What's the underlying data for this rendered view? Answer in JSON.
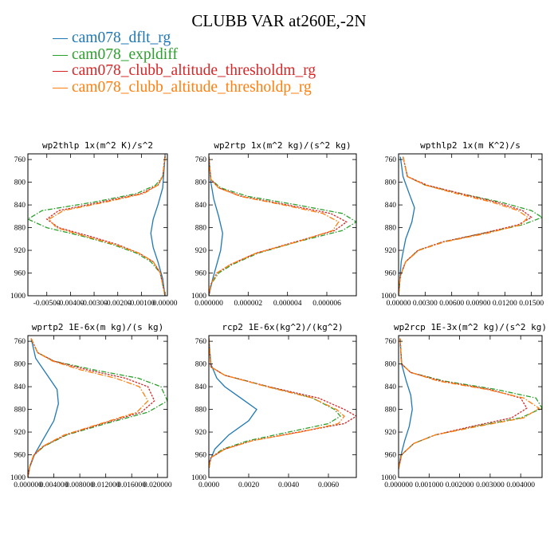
{
  "figure": {
    "title": "CLUBB VAR at260E,-2N"
  },
  "legend": [
    {
      "label": "cam078_dflt_rg",
      "color": "#1f77b4"
    },
    {
      "label": "cam078_expldiff",
      "color": "#2ca02c"
    },
    {
      "label": "cam078_clubb_altitude_thresholdm_rg",
      "color": "#d62728"
    },
    {
      "label": "cam078_clubb_altitude_thresholdp_rg",
      "color": "#ff7f0e"
    }
  ],
  "chart_data": [
    {
      "type": "line",
      "title": "wp2thlp  1x(m^2 K)/s^2",
      "xlim": [
        -0.0058,
        0.0001
      ],
      "ylim": [
        1000,
        750
      ],
      "x_ticks": [
        -0.005,
        -0.004,
        -0.003,
        -0.002,
        -0.001,
        0
      ],
      "x_tick_labels": [
        "-0.00500",
        "-0.00400",
        "-0.00300",
        "-0.00200",
        "-0.00100",
        "0.00000"
      ],
      "y_ticks": [
        760,
        800,
        840,
        880,
        920,
        960,
        1000
      ],
      "y_tick_labels": [
        "760",
        "800",
        "840",
        "880",
        "920",
        "960",
        "1000"
      ],
      "series": [
        {
          "name": "cam078_dflt_rg",
          "x": [
            0.0,
            -0.0001,
            -0.0003,
            -0.0005,
            -0.0006,
            -0.0005,
            -0.0003,
            -0.0001,
            0.0
          ],
          "y": [
            755,
            810,
            840,
            865,
            890,
            915,
            940,
            970,
            1000
          ]
        },
        {
          "name": "cam078_expldiff",
          "x": [
            0.0,
            -0.0001,
            -0.0004,
            -0.0012,
            -0.003,
            -0.0052,
            -0.0058,
            -0.005,
            -0.0035,
            -0.0022,
            -0.0012,
            -0.0006,
            -0.0002,
            0.0
          ],
          "y": [
            755,
            790,
            805,
            820,
            835,
            850,
            865,
            880,
            895,
            910,
            925,
            940,
            960,
            1000
          ]
        },
        {
          "name": "cam078_clubb_altitude_thresholdm_rg",
          "x": [
            0.0,
            -0.0001,
            -0.0003,
            -0.001,
            -0.0027,
            -0.0045,
            -0.005,
            -0.0045,
            -0.0032,
            -0.002,
            -0.0011,
            -0.0005,
            -0.0002,
            0.0
          ],
          "y": [
            755,
            790,
            805,
            820,
            835,
            850,
            865,
            880,
            895,
            910,
            925,
            940,
            960,
            1000
          ]
        },
        {
          "name": "cam078_clubb_altitude_thresholdp_rg",
          "x": [
            0.0,
            -0.0001,
            -0.0003,
            -0.0009,
            -0.0025,
            -0.0043,
            -0.0049,
            -0.0046,
            -0.0034,
            -0.0021,
            -0.0011,
            -0.0005,
            -0.0002,
            0.0
          ],
          "y": [
            755,
            790,
            805,
            820,
            835,
            850,
            865,
            880,
            895,
            910,
            925,
            940,
            960,
            1000
          ]
        }
      ]
    },
    {
      "type": "line",
      "title": "wp2rtp  1x(m^2 kg)/(s^2 kg)",
      "xlim": [
        0,
        7.5e-06
      ],
      "ylim": [
        1000,
        750
      ],
      "x_ticks": [
        0,
        2e-06,
        4e-06,
        6e-06
      ],
      "x_tick_labels": [
        "0.000000",
        "0.000002",
        "0.000004",
        "0.000006"
      ],
      "y_ticks": [
        760,
        800,
        840,
        880,
        920,
        960,
        1000
      ],
      "y_tick_labels": [
        "760",
        "800",
        "840",
        "880",
        "920",
        "960",
        "1000"
      ],
      "series": [
        {
          "name": "cam078_dflt_rg",
          "x": [
            0.0,
            1e-07,
            2.5e-07,
            5e-07,
            7e-07,
            6e-07,
            4e-07,
            2e-07,
            0.0
          ],
          "y": [
            755,
            800,
            830,
            860,
            890,
            920,
            945,
            970,
            1000
          ]
        },
        {
          "name": "cam078_expldiff",
          "x": [
            0.0,
            1e-07,
            6e-07,
            2e-06,
            4.5e-06,
            6.8e-06,
            7.5e-06,
            6.8e-06,
            4.5e-06,
            2.5e-06,
            1.2e-06,
            5e-07,
            1e-07,
            0.0
          ],
          "y": [
            755,
            795,
            810,
            825,
            840,
            855,
            870,
            885,
            905,
            925,
            945,
            960,
            980,
            1000
          ]
        },
        {
          "name": "cam078_clubb_altitude_thresholdm_rg",
          "x": [
            0.0,
            1e-07,
            5e-07,
            1.7e-06,
            4e-06,
            6.2e-06,
            7e-06,
            6.4e-06,
            4.4e-06,
            2.4e-06,
            1.1e-06,
            4e-07,
            1e-07,
            0.0
          ],
          "y": [
            755,
            795,
            810,
            825,
            840,
            855,
            870,
            885,
            905,
            925,
            945,
            960,
            980,
            1000
          ]
        },
        {
          "name": "cam078_clubb_altitude_thresholdp_rg",
          "x": [
            0.0,
            1e-07,
            5e-07,
            1.6e-06,
            3.8e-06,
            5.8e-06,
            6.6e-06,
            6.3e-06,
            4.5e-06,
            2.4e-06,
            1.1e-06,
            4e-07,
            1e-07,
            0.0
          ],
          "y": [
            755,
            795,
            810,
            825,
            840,
            855,
            870,
            885,
            905,
            925,
            945,
            960,
            980,
            1000
          ]
        }
      ]
    },
    {
      "type": "line",
      "title": "wpthlp2  1x(m K^2)/s",
      "xlim": [
        0,
        0.0162
      ],
      "ylim": [
        1000,
        750
      ],
      "x_ticks": [
        0,
        0.003,
        0.006,
        0.009,
        0.012,
        0.015
      ],
      "x_tick_labels": [
        "0.00000",
        "0.00300",
        "0.00600",
        "0.00900",
        "0.01200",
        "0.01500"
      ],
      "y_ticks": [
        760,
        800,
        840,
        880,
        920,
        960,
        1000
      ],
      "y_tick_labels": [
        "760",
        "800",
        "840",
        "880",
        "920",
        "960",
        "1000"
      ],
      "series": [
        {
          "name": "cam078_dflt_rg",
          "x": [
            0.0002,
            0.0005,
            0.0012,
            0.0018,
            0.0015,
            0.0008,
            0.0003,
            0.0
          ],
          "y": [
            755,
            790,
            820,
            845,
            870,
            900,
            940,
            1000
          ]
        },
        {
          "name": "cam078_expldiff",
          "x": [
            0.0005,
            0.001,
            0.003,
            0.007,
            0.0115,
            0.015,
            0.0162,
            0.014,
            0.0095,
            0.005,
            0.0022,
            0.0008,
            0.0002,
            0.0
          ],
          "y": [
            755,
            790,
            805,
            820,
            835,
            850,
            862,
            875,
            890,
            905,
            920,
            940,
            965,
            1000
          ]
        },
        {
          "name": "cam078_clubb_altitude_thresholdm_rg",
          "x": [
            0.0005,
            0.001,
            0.0032,
            0.007,
            0.011,
            0.014,
            0.015,
            0.0135,
            0.0095,
            0.005,
            0.0022,
            0.0008,
            0.0002,
            0.0
          ],
          "y": [
            755,
            790,
            805,
            820,
            835,
            850,
            862,
            875,
            890,
            905,
            920,
            940,
            965,
            1000
          ]
        },
        {
          "name": "cam078_clubb_altitude_thresholdp_rg",
          "x": [
            0.0005,
            0.001,
            0.003,
            0.0065,
            0.0105,
            0.0135,
            0.0146,
            0.0138,
            0.01,
            0.0052,
            0.0023,
            0.0008,
            0.0002,
            0.0
          ],
          "y": [
            755,
            790,
            805,
            820,
            835,
            850,
            862,
            875,
            890,
            905,
            920,
            940,
            965,
            1000
          ]
        }
      ]
    },
    {
      "type": "line",
      "title": "wprtp2  1E-6x(m kg)/(s kg)",
      "xlim": [
        0,
        0.0215
      ],
      "ylim": [
        1000,
        750
      ],
      "x_ticks": [
        0,
        0.004,
        0.008,
        0.012,
        0.016,
        0.02
      ],
      "x_tick_labels": [
        "0.000000",
        "0.004000",
        "0.008000",
        "0.012000",
        "0.016000",
        "0.020000"
      ],
      "y_ticks": [
        760,
        800,
        840,
        880,
        920,
        960,
        1000
      ],
      "y_tick_labels": [
        "760",
        "800",
        "840",
        "880",
        "920",
        "960",
        "1000"
      ],
      "series": [
        {
          "name": "cam078_dflt_rg",
          "x": [
            0.0005,
            0.0012,
            0.003,
            0.0045,
            0.0047,
            0.004,
            0.0025,
            0.001,
            0.0002,
            0.0
          ],
          "y": [
            755,
            790,
            820,
            845,
            870,
            900,
            930,
            960,
            985,
            1000
          ]
        },
        {
          "name": "cam078_expldiff",
          "x": [
            0.0005,
            0.0015,
            0.004,
            0.01,
            0.017,
            0.0205,
            0.0215,
            0.0185,
            0.012,
            0.006,
            0.0025,
            0.001,
            0.0003,
            0.0
          ],
          "y": [
            755,
            780,
            795,
            810,
            825,
            840,
            865,
            885,
            905,
            925,
            945,
            960,
            980,
            1000
          ]
        },
        {
          "name": "cam078_clubb_altitude_thresholdm_rg",
          "x": [
            0.0005,
            0.0015,
            0.004,
            0.009,
            0.015,
            0.0185,
            0.0195,
            0.0175,
            0.0115,
            0.0058,
            0.0024,
            0.001,
            0.0003,
            0.0
          ],
          "y": [
            755,
            780,
            795,
            810,
            825,
            840,
            865,
            885,
            905,
            925,
            945,
            960,
            980,
            1000
          ]
        },
        {
          "name": "cam078_clubb_altitude_thresholdp_rg",
          "x": [
            0.0005,
            0.0015,
            0.0038,
            0.008,
            0.0135,
            0.0172,
            0.0185,
            0.0168,
            0.0112,
            0.0056,
            0.0023,
            0.0009,
            0.0003,
            0.0
          ],
          "y": [
            755,
            780,
            795,
            810,
            825,
            840,
            865,
            885,
            905,
            925,
            945,
            960,
            980,
            1000
          ]
        }
      ]
    },
    {
      "type": "line",
      "title": "rcp2  1E-6x(kg^2)/(kg^2)",
      "xlim": [
        0,
        0.0074
      ],
      "ylim": [
        1000,
        750
      ],
      "x_ticks": [
        0,
        0.002,
        0.004,
        0.006
      ],
      "x_tick_labels": [
        "0.0000",
        "0.0020",
        "0.0040",
        "0.0060"
      ],
      "y_ticks": [
        760,
        800,
        840,
        880,
        920,
        960,
        1000
      ],
      "y_tick_labels": [
        "760",
        "800",
        "840",
        "880",
        "920",
        "960",
        "1000"
      ],
      "series": [
        {
          "name": "cam078_dflt_rg",
          "x": [
            0.0,
            0.0001,
            0.0004,
            0.0008,
            0.0016,
            0.0024,
            0.002,
            0.001,
            0.0003,
            0.0
          ],
          "y": [
            755,
            800,
            825,
            840,
            860,
            880,
            900,
            925,
            950,
            975
          ]
        },
        {
          "name": "cam078_expldiff",
          "x": [
            0.0,
            0.0001,
            0.0008,
            0.003,
            0.0052,
            0.0063,
            0.0066,
            0.006,
            0.004,
            0.002,
            0.0007,
            0.0001,
            0.0
          ],
          "y": [
            755,
            805,
            820,
            840,
            860,
            880,
            892,
            905,
            920,
            935,
            950,
            965,
            985
          ]
        },
        {
          "name": "cam078_clubb_altitude_thresholdm_rg",
          "x": [
            0.0,
            0.0001,
            0.0008,
            0.003,
            0.0055,
            0.0068,
            0.0074,
            0.0068,
            0.0045,
            0.0022,
            0.0008,
            0.0001,
            0.0
          ],
          "y": [
            755,
            805,
            820,
            840,
            860,
            880,
            892,
            905,
            920,
            935,
            950,
            965,
            985
          ]
        },
        {
          "name": "cam078_clubb_altitude_thresholdp_rg",
          "x": [
            0.0,
            0.0001,
            0.0008,
            0.0029,
            0.0052,
            0.0064,
            0.0068,
            0.0065,
            0.0046,
            0.0022,
            0.0008,
            0.0001,
            0.0
          ],
          "y": [
            755,
            805,
            820,
            840,
            860,
            880,
            892,
            905,
            920,
            935,
            950,
            965,
            985
          ]
        }
      ]
    },
    {
      "type": "line",
      "title": "wp2rcp  1E-3x(m^2 kg)/(s^2 kg)",
      "xlim": [
        0,
        0.0047
      ],
      "ylim": [
        1000,
        750
      ],
      "x_ticks": [
        0,
        0.001,
        0.002,
        0.003,
        0.004
      ],
      "x_tick_labels": [
        "0.000000",
        "0.001000",
        "0.002000",
        "0.003000",
        "0.004000"
      ],
      "y_ticks": [
        760,
        800,
        840,
        880,
        920,
        960,
        1000
      ],
      "y_tick_labels": [
        "760",
        "800",
        "840",
        "880",
        "920",
        "960",
        "1000"
      ],
      "series": [
        {
          "name": "cam078_dflt_rg",
          "x": [
            5e-05,
            0.0001,
            0.00025,
            0.0004,
            0.00045,
            0.00035,
            0.0002,
            8e-05,
            0.0
          ],
          "y": [
            755,
            800,
            830,
            855,
            880,
            910,
            935,
            960,
            985
          ]
        },
        {
          "name": "cam078_expldiff",
          "x": [
            5e-05,
            0.0001,
            0.0004,
            0.0015,
            0.0032,
            0.0045,
            0.0047,
            0.004,
            0.0025,
            0.0012,
            0.0005,
            0.0001,
            0.0
          ],
          "y": [
            755,
            800,
            815,
            830,
            845,
            860,
            878,
            895,
            910,
            925,
            940,
            960,
            985
          ]
        },
        {
          "name": "cam078_clubb_altitude_thresholdm_rg",
          "x": [
            5e-05,
            0.0001,
            0.0004,
            0.0014,
            0.003,
            0.004,
            0.0042,
            0.0037,
            0.0024,
            0.0012,
            0.0005,
            0.0001,
            0.0
          ],
          "y": [
            755,
            800,
            815,
            830,
            845,
            860,
            878,
            895,
            910,
            925,
            940,
            960,
            985
          ]
        },
        {
          "name": "cam078_clubb_altitude_thresholdp_rg",
          "x": [
            5e-05,
            0.0001,
            0.0004,
            0.0013,
            0.0029,
            0.0041,
            0.0046,
            0.0041,
            0.0026,
            0.0012,
            0.0005,
            0.0001,
            0.0
          ],
          "y": [
            755,
            800,
            815,
            830,
            845,
            860,
            878,
            895,
            910,
            925,
            940,
            960,
            985
          ]
        }
      ]
    }
  ]
}
